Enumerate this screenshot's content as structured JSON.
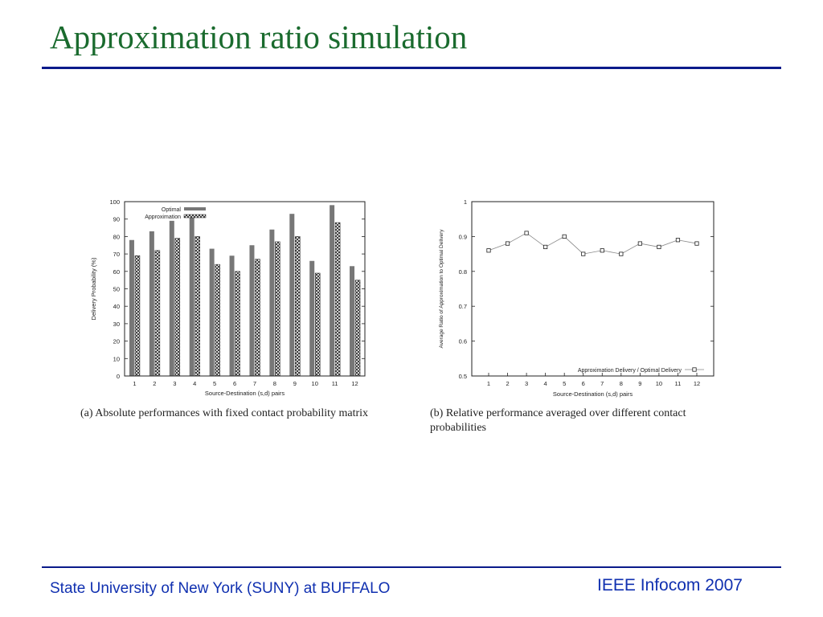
{
  "slide": {
    "title": "Approximation ratio simulation",
    "footer_left": "State University of New York (SUNY) at BUFFALO",
    "footer_right": "IEEE Infocom 2007"
  },
  "colors": {
    "title": "#1a6b2e",
    "rule": "#0a1a8a",
    "footer": "#1030b0",
    "optimal_bar": "#777777"
  },
  "chart_data": [
    {
      "type": "bar",
      "caption": "(a) Absolute performances with fixed contact probability matrix",
      "xlabel": "Source-Destination (s,d) pairs",
      "ylabel": "Delivery Probability (%)",
      "categories": [
        "1",
        "2",
        "3",
        "4",
        "5",
        "6",
        "7",
        "8",
        "9",
        "10",
        "11",
        "12"
      ],
      "ylim": [
        0,
        100
      ],
      "yticks": [
        0,
        10,
        20,
        30,
        40,
        50,
        60,
        70,
        80,
        90,
        100
      ],
      "legend_position": "top-left",
      "series": [
        {
          "name": "Optimal",
          "values": [
            78,
            83,
            89,
            92,
            73,
            69,
            75,
            84,
            93,
            66,
            98,
            63
          ]
        },
        {
          "name": "Approximation",
          "values": [
            69,
            72,
            79,
            80,
            64,
            60,
            67,
            77,
            80,
            59,
            88,
            55
          ]
        }
      ]
    },
    {
      "type": "line",
      "caption": "(b) Relative performance averaged over different contact probabilities",
      "xlabel": "Source-Destination (s,d) pairs",
      "ylabel": "Average Ratio of Approximation to Optimal Delivery",
      "categories": [
        "1",
        "2",
        "3",
        "4",
        "5",
        "6",
        "7",
        "8",
        "9",
        "10",
        "11",
        "12"
      ],
      "ylim": [
        0.5,
        1
      ],
      "yticks": [
        "0.5",
        "0.6",
        "0.7",
        "0.8",
        "0.9",
        "1"
      ],
      "legend_position": "bottom-right",
      "series": [
        {
          "name": "Approximation Delivery / Optimal Delivery",
          "values": [
            0.86,
            0.88,
            0.91,
            0.87,
            0.9,
            0.85,
            0.86,
            0.85,
            0.88,
            0.87,
            0.89,
            0.88
          ]
        }
      ]
    }
  ]
}
